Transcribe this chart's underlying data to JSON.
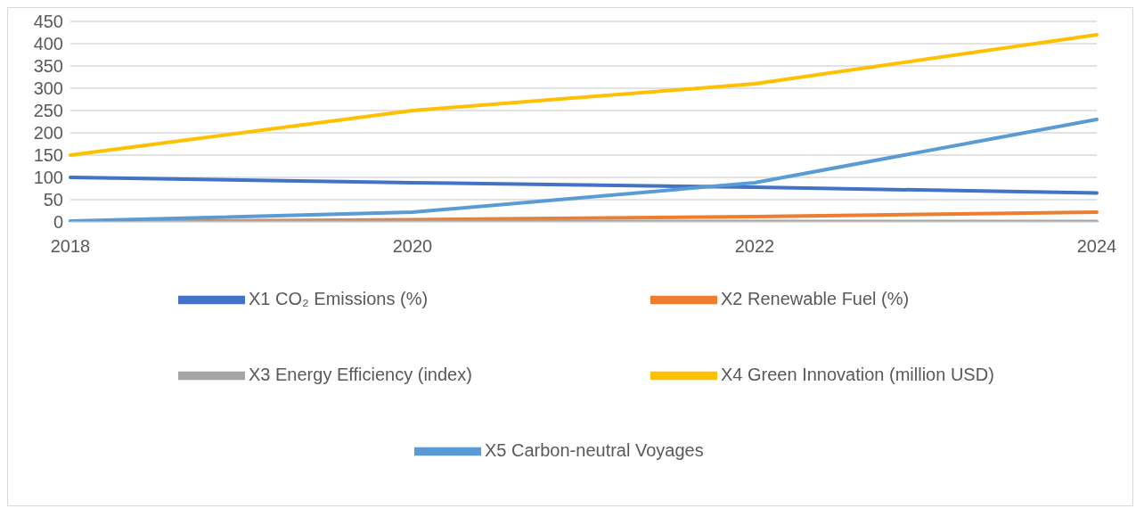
{
  "chart_data": {
    "type": "line",
    "categories": [
      "2018",
      "2020",
      "2022",
      "2024"
    ],
    "series": [
      {
        "name": "X1 CO₂ Emissions (%)",
        "color": "#4472c4",
        "values": [
          100,
          88,
          78,
          65
        ]
      },
      {
        "name": "X2 Renewable Fuel (%)",
        "color": "#ed7d31",
        "values": [
          0,
          5,
          12,
          22
        ]
      },
      {
        "name": "X3 Energy Efficiency (index)",
        "color": "#a5a5a5",
        "values": [
          1,
          1,
          1,
          1
        ]
      },
      {
        "name": "X4 Green Innovation (million USD)",
        "color": "#ffc000",
        "values": [
          150,
          250,
          310,
          420
        ]
      },
      {
        "name": "X5 Carbon-neutral Voyages",
        "color": "#5b9bd5",
        "values": [
          2,
          22,
          88,
          230
        ]
      }
    ],
    "ylim": [
      0,
      450
    ],
    "yticks": [
      0,
      50,
      100,
      150,
      200,
      250,
      300,
      350,
      400,
      450
    ],
    "grid": "y",
    "legend": "bottom",
    "marker": "none",
    "line_style": "solid"
  }
}
